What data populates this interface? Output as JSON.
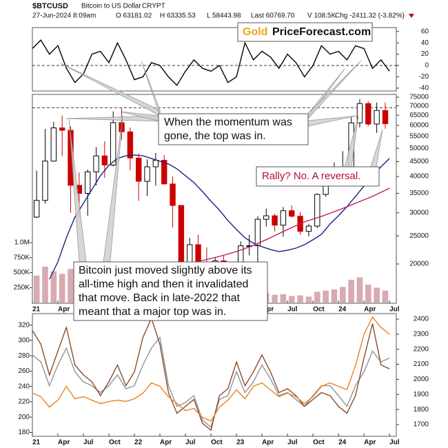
{
  "header": {
    "symbol": "$BTCUSD",
    "name": "Bitcoin to US Dollar",
    "exchange": "CRYPT",
    "date": "27-Jun-2024 8:09am",
    "open": "O 63181.02",
    "high": "H 63335.53",
    "low": "L 58443.98",
    "last": "Last 60769.70",
    "volume": "V 108.5K",
    "change": "Chg -2411.32 (-3.82%)"
  },
  "logo": {
    "gold": "Gold",
    "site": "PriceForecast.com"
  },
  "annotations": {
    "momentum": [
      "When the momentum was",
      "gone, the top was in."
    ],
    "reversal": "Rally? No. A reversal.",
    "bitcoin": [
      "Bitcoin just moved slightly above its",
      "all-time high and then it invalidated",
      "that move. Back in late-2022 that",
      "meant that a major top was in."
    ]
  },
  "chart_data": [
    {
      "type": "line",
      "xlim": [
        0,
        42.8
      ],
      "ylim": [
        -45,
        67
      ],
      "yticks": [
        60,
        40,
        20,
        0,
        -20,
        -40
      ],
      "reference_line": 0,
      "x": [
        0,
        1,
        2,
        3,
        4,
        5,
        6,
        7,
        8,
        9,
        10,
        11,
        12,
        13,
        14,
        15,
        16,
        17,
        18,
        19,
        20,
        21,
        22,
        23,
        24,
        25,
        26,
        27,
        28,
        29,
        30,
        31,
        32,
        33,
        34,
        35,
        36,
        37,
        38,
        39,
        40,
        41,
        42
      ],
      "series": [
        {
          "color": "#000000",
          "values": [
            30,
            45,
            20,
            35,
            -5,
            -30,
            -15,
            20,
            25,
            5,
            40,
            10,
            -25,
            -20,
            5,
            0,
            -20,
            -35,
            -10,
            10,
            -5,
            -10,
            0,
            -30,
            -20,
            40,
            10,
            25,
            15,
            -5,
            20,
            5,
            -20,
            0,
            35,
            20,
            25,
            10,
            35,
            30,
            -5,
            10,
            -10
          ]
        }
      ]
    },
    {
      "type": "candlestick",
      "log": true,
      "xlim": [
        0,
        42.8
      ],
      "ylim": [
        14650,
        76650
      ],
      "yticks": [
        75000,
        70000,
        65000,
        60000,
        55000,
        50000,
        45000,
        40000,
        35000,
        30000,
        25000,
        20000
      ],
      "xticks": [
        {
          "value": 0,
          "label": "21"
        },
        {
          "value": 3,
          "label": "Apr"
        },
        {
          "value": 6,
          "label": "Jul"
        },
        {
          "value": 9,
          "label": "Oct"
        },
        {
          "value": 12,
          "label": "22"
        },
        {
          "value": 15,
          "label": "Apr"
        },
        {
          "value": 18,
          "label": "Jul"
        },
        {
          "value": 21,
          "label": "Oct"
        },
        {
          "value": 24,
          "label": "23"
        },
        {
          "value": 27,
          "label": "Apr"
        },
        {
          "value": 30,
          "label": "Jul"
        },
        {
          "value": 33,
          "label": "Oct"
        },
        {
          "value": 36,
          "label": "24"
        },
        {
          "value": 39,
          "label": "Apr"
        },
        {
          "value": 42,
          "label": "Jul"
        }
      ],
      "reference_line": 69000,
      "up_color": "#000000",
      "down_color": "#cc0000",
      "x": [
        0.5,
        1.5,
        2.5,
        3.5,
        4.5,
        5.5,
        6.5,
        7.5,
        8.5,
        9.5,
        10.5,
        11.5,
        12.5,
        13.5,
        14.5,
        15.5,
        16.5,
        17.5,
        18.5,
        19.5,
        20.5,
        21.5,
        22.5,
        23.5,
        24.5,
        25.5,
        26.5,
        27.5,
        28.5,
        29.5,
        30.5,
        31.5,
        32.5,
        33.5,
        34.5,
        35.5,
        36.5,
        37.5,
        38.5,
        39.5,
        40.5,
        41.5
      ],
      "open": [
        29000,
        33100,
        45200,
        58800,
        57700,
        37300,
        35000,
        41500,
        47100,
        43800,
        61300,
        57000,
        46300,
        38500,
        43200,
        45500,
        37700,
        31800,
        19900,
        23300,
        20000,
        19400,
        20500,
        17200,
        16500,
        23100,
        23100,
        28500,
        29300,
        27200,
        30500,
        29200,
        25900,
        27000,
        34700,
        37700,
        42300,
        42600,
        61200,
        71300,
        60600,
        67500
      ],
      "high": [
        41900,
        58300,
        61700,
        64800,
        59500,
        41300,
        42300,
        50500,
        52900,
        67000,
        69000,
        59000,
        48000,
        45800,
        48200,
        47400,
        40000,
        31900,
        24600,
        25200,
        22800,
        21000,
        21400,
        18400,
        23900,
        25200,
        29200,
        31000,
        29800,
        31400,
        31800,
        30200,
        27500,
        35000,
        38400,
        44700,
        48900,
        63900,
        73800,
        72700,
        71900,
        71900
      ],
      "low": [
        28800,
        32300,
        45000,
        47000,
        30000,
        28800,
        29300,
        37300,
        39600,
        43300,
        53300,
        42000,
        33000,
        34300,
        37200,
        37700,
        26700,
        17600,
        18800,
        19600,
        18200,
        18200,
        15500,
        16300,
        16500,
        21400,
        19600,
        26900,
        25900,
        24800,
        28900,
        25200,
        24900,
        26600,
        34100,
        37600,
        38500,
        41900,
        59000,
        59600,
        56500,
        58400
      ],
      "close": [
        33100,
        45200,
        58800,
        57700,
        37300,
        35000,
        41500,
        47100,
        43800,
        61300,
        57000,
        46300,
        38500,
        43200,
        45500,
        37700,
        31800,
        19900,
        23300,
        20000,
        19400,
        20500,
        17200,
        16500,
        23100,
        23100,
        28500,
        29300,
        27200,
        30500,
        29200,
        25900,
        27000,
        34700,
        37700,
        42300,
        42600,
        61200,
        71300,
        60600,
        67500,
        60770
      ],
      "series": [
        {
          "color": "#1a237e",
          "x": [
            2,
            3,
            4,
            5,
            6,
            7,
            8,
            9,
            10,
            11,
            12,
            13,
            14,
            15,
            16,
            17,
            18,
            19,
            20,
            21,
            22,
            23,
            24,
            25,
            26,
            27,
            28,
            29,
            30,
            31,
            32,
            33,
            34,
            35,
            36,
            37,
            38,
            39,
            40,
            41,
            42
          ],
          "values": [
            17740,
            20330,
            24620,
            29000,
            32350,
            36080,
            40270,
            43690,
            46140,
            47160,
            47420,
            47160,
            46140,
            45140,
            44180,
            42520,
            40270,
            38110,
            35500,
            32880,
            30640,
            28220,
            26280,
            24620,
            23560,
            22930,
            22420,
            22070,
            22300,
            22680,
            23300,
            24220,
            25300,
            27460,
            29320,
            31480,
            34180,
            37070,
            40270,
            43200,
            46140
          ]
        },
        {
          "color": "#c2185b",
          "x": [
            12,
            14,
            16,
            18,
            20,
            22,
            24,
            26,
            28,
            30,
            32,
            34,
            36,
            38,
            40,
            42
          ],
          "values": [
            18730,
            19040,
            19460,
            20000,
            20550,
            21240,
            22070,
            23160,
            24620,
            26280,
            27910,
            29150,
            30640,
            32360,
            34180,
            36470
          ]
        }
      ]
    },
    {
      "type": "bar",
      "xlim": [
        0,
        42.8
      ],
      "ylim": [
        0,
        1000000
      ],
      "color": "#d8aab1",
      "yticks": [
        {
          "value": 1000000,
          "label": "1.0M"
        },
        {
          "value": 750000,
          "label": "750K"
        },
        {
          "value": 500000,
          "label": "500K"
        },
        {
          "value": 250000,
          "label": "250K"
        }
      ],
      "x": [
        0.5,
        1.5,
        2.5,
        3.5,
        4.5,
        5.5,
        6.5,
        7.5,
        8.5,
        9.5,
        10.5,
        11.5,
        12.5,
        13.5,
        14.5,
        15.5,
        16.5,
        17.5,
        18.5,
        19.5,
        20.5,
        21.5,
        22.5,
        23.5,
        24.5,
        25.5,
        26.5,
        27.5,
        28.5,
        29.5,
        30.5,
        31.5,
        32.5,
        33.5,
        34.5,
        35.5,
        36.5,
        37.5,
        38.5,
        39.5,
        40.5,
        41.5
      ],
      "values": [
        450000,
        600000,
        520000,
        480000,
        560000,
        420000,
        300000,
        280000,
        260000,
        320000,
        300000,
        280000,
        300000,
        260000,
        240000,
        220000,
        300000,
        400000,
        250000,
        200000,
        180000,
        170000,
        260000,
        150000,
        200000,
        180000,
        220000,
        160000,
        130000,
        140000,
        110000,
        120000,
        100000,
        180000,
        200000,
        220000,
        260000,
        380000,
        420000,
        300000,
        250000,
        200000
      ]
    },
    {
      "type": "line",
      "xlim": [
        0,
        42.8
      ],
      "ylim": [
        175,
        335
      ],
      "yticks": [
        320,
        300,
        280,
        260,
        240,
        220,
        200,
        180
      ],
      "y2lim": [
        1622,
        2437
      ],
      "y2ticks": [
        2400,
        2300,
        2200,
        2100,
        2000,
        1900,
        1800,
        1700
      ],
      "xticks": [
        {
          "value": 0,
          "label": "21"
        },
        {
          "value": 3,
          "label": "Apr"
        },
        {
          "value": 6,
          "label": "Jul"
        },
        {
          "value": 9,
          "label": "Oct"
        },
        {
          "value": 12,
          "label": "22"
        },
        {
          "value": 15,
          "label": "Apr"
        },
        {
          "value": 18,
          "label": "Jul"
        },
        {
          "value": 21,
          "label": "Oct"
        },
        {
          "value": 24,
          "label": "23"
        },
        {
          "value": 27,
          "label": "Apr"
        },
        {
          "value": 30,
          "label": "Jul"
        },
        {
          "value": 33,
          "label": "Oct"
        },
        {
          "value": 36,
          "label": "24"
        },
        {
          "value": 39,
          "label": "Apr"
        },
        {
          "value": 42,
          "label": "Jul"
        }
      ],
      "x": [
        0,
        1,
        2,
        3,
        4,
        5,
        6,
        7,
        8,
        9,
        10,
        11,
        12,
        13,
        14,
        15,
        16,
        17,
        18,
        19,
        20,
        21,
        22,
        23,
        24,
        25,
        26,
        27,
        28,
        29,
        30,
        31,
        32,
        33,
        34,
        35,
        36,
        37,
        38,
        39,
        40,
        41,
        42
      ],
      "series": [
        {
          "color": "#8c9499",
          "values": [
            281,
            272,
            241,
            268,
            290,
            259,
            246,
            241,
            232,
            241,
            255,
            237,
            241,
            268,
            290,
            304,
            241,
            214,
            219,
            228,
            196,
            187,
            223,
            228,
            259,
            232,
            246,
            268,
            250,
            228,
            232,
            223,
            214,
            228,
            241,
            241,
            228,
            214,
            241,
            259,
            286,
            272,
            277
          ]
        },
        {
          "color": "#8b4a2b",
          "values": [
            313,
            295,
            255,
            286,
            317,
            268,
            255,
            246,
            228,
            246,
            268,
            241,
            259,
            304,
            329,
            295,
            232,
            205,
            214,
            223,
            192,
            183,
            228,
            237,
            272,
            241,
            259,
            281,
            259,
            232,
            237,
            228,
            214,
            223,
            232,
            228,
            214,
            205,
            228,
            277,
            322,
            268,
            263
          ]
        },
        {
          "color": "#e8821e",
          "axis": "y2",
          "values": [
            1908,
            1885,
            1816,
            1862,
            1954,
            1871,
            1885,
            1862,
            1839,
            1853,
            1862,
            1853,
            1871,
            1908,
            1977,
            1954,
            1885,
            1839,
            1793,
            1807,
            1747,
            1724,
            1816,
            1862,
            1931,
            1871,
            1954,
            1977,
            1931,
            1885,
            1908,
            1885,
            1839,
            1885,
            1954,
            1977,
            1954,
            1931,
            2092,
            2299,
            2414,
            2345,
            2299
          ]
        }
      ]
    }
  ]
}
